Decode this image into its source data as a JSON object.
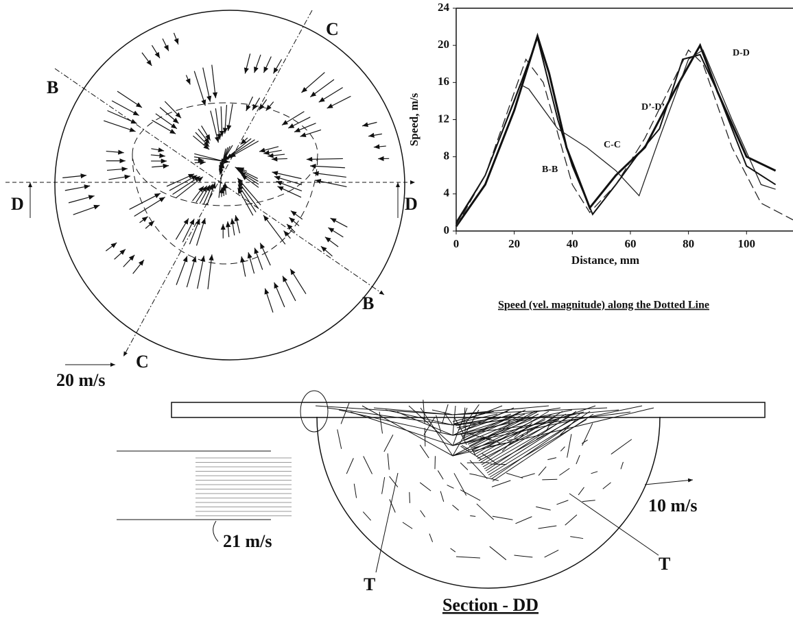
{
  "chart_data": {
    "type": "line",
    "title": "Speed (vel. magnitude) along the  Dotted Line",
    "x_label": "Distance, mm",
    "y_label": "Speed, m/s",
    "xlim": [
      0,
      116
    ],
    "ylim": [
      0,
      24
    ],
    "xticks": [
      0,
      20,
      40,
      60,
      80,
      100
    ],
    "yticks": [
      0,
      4,
      8,
      12,
      16,
      20,
      24
    ],
    "series": [
      {
        "name": "B-B",
        "color": "#111111",
        "x": [
          0,
          10,
          20,
          28,
          32,
          38,
          46,
          55,
          65,
          75,
          84,
          90,
          100,
          110
        ],
        "values": [
          0.5,
          5,
          13,
          21,
          17,
          9,
          2.5,
          6,
          9,
          15,
          20,
          15,
          8,
          6.5
        ]
      },
      {
        "name": "C-C",
        "color": "#222222",
        "x": [
          0,
          10,
          22,
          25,
          35,
          45,
          55,
          63,
          70,
          80,
          85,
          95,
          105,
          110
        ],
        "values": [
          1,
          6,
          15.8,
          15.3,
          11,
          9,
          6.5,
          3.8,
          10,
          18.5,
          19.5,
          12,
          5,
          4.5
        ]
      },
      {
        "name": "D-D",
        "color": "#111111",
        "x": [
          0,
          10,
          20,
          28,
          35,
          40,
          47,
          55,
          62,
          70,
          78,
          84,
          90,
          100,
          110
        ],
        "values": [
          0.8,
          6,
          14,
          20.8,
          12,
          7,
          1.8,
          5,
          8,
          11,
          18.5,
          19,
          15,
          7,
          5
        ]
      },
      {
        "name": "D’-D’",
        "color": "#222222",
        "x": [
          0,
          10,
          24,
          30,
          40,
          46,
          55,
          65,
          80,
          85,
          95,
          105,
          116
        ],
        "values": [
          0.5,
          6,
          18.5,
          16,
          5,
          2,
          5,
          10,
          19.5,
          18,
          9,
          3,
          1.2
        ]
      }
    ]
  },
  "diagram": {
    "cut_labels": [
      "C",
      "B",
      "D",
      "D",
      "B",
      "C"
    ],
    "scale_top": "20 m/s",
    "scale_bottom": "10 m/s",
    "inlet_speed": "21  m/s",
    "vortex_labels": [
      "T",
      "T"
    ],
    "section_title": "Section - DD"
  }
}
